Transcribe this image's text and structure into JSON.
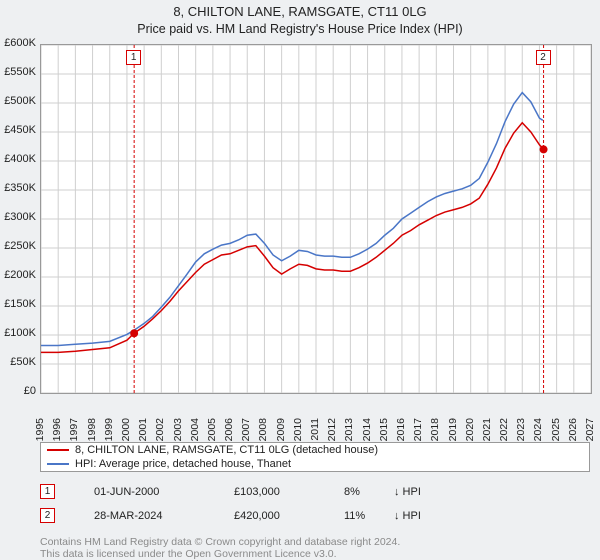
{
  "title_line1": "8, CHILTON LANE, RAMSGATE, CT11 0LG",
  "title_line2": "Price paid vs. HM Land Registry's House Price Index (HPI)",
  "chart": {
    "type": "line",
    "background": "#ffffff",
    "panel_background": "#eef0f2",
    "grid_color": "#cfcfcf",
    "border_color": "#999999",
    "x": {
      "min": 1995,
      "max": 2027,
      "ticks": [
        1995,
        1996,
        1997,
        1998,
        1999,
        2000,
        2001,
        2002,
        2003,
        2004,
        2005,
        2006,
        2007,
        2008,
        2009,
        2010,
        2011,
        2012,
        2013,
        2014,
        2015,
        2016,
        2017,
        2018,
        2019,
        2020,
        2021,
        2022,
        2023,
        2024,
        2025,
        2026,
        2027
      ],
      "labels": [
        "1995",
        "1996",
        "1997",
        "1998",
        "1999",
        "2000",
        "2001",
        "2002",
        "2003",
        "2004",
        "2005",
        "2006",
        "2007",
        "2008",
        "2009",
        "2010",
        "2011",
        "2012",
        "2013",
        "2014",
        "2015",
        "2016",
        "2017",
        "2018",
        "2019",
        "2020",
        "2021",
        "2022",
        "2023",
        "2024",
        "2025",
        "2026",
        "2027"
      ],
      "label_fontsize": 10.5
    },
    "y": {
      "min": 0,
      "max": 600000,
      "tick_step": 50000,
      "labels": [
        "£0",
        "£50K",
        "£100K",
        "£150K",
        "£200K",
        "£250K",
        "£300K",
        "£350K",
        "£400K",
        "£450K",
        "£500K",
        "£550K",
        "£600K"
      ],
      "label_fontsize": 11
    },
    "series": [
      {
        "name": "HPI: Average price, detached house, Thanet",
        "color": "#4a76c7",
        "width": 1.5,
        "points": [
          [
            1995,
            82000
          ],
          [
            1996,
            82000
          ],
          [
            1997,
            84000
          ],
          [
            1998,
            86000
          ],
          [
            1999,
            89000
          ],
          [
            2000,
            101000
          ],
          [
            2000.5,
            110000
          ],
          [
            2001,
            120000
          ],
          [
            2001.5,
            132000
          ],
          [
            2002,
            148000
          ],
          [
            2002.5,
            165000
          ],
          [
            2003,
            185000
          ],
          [
            2003.5,
            205000
          ],
          [
            2004,
            226000
          ],
          [
            2004.5,
            240000
          ],
          [
            2005,
            248000
          ],
          [
            2005.5,
            255000
          ],
          [
            2006,
            258000
          ],
          [
            2006.5,
            264000
          ],
          [
            2007,
            272000
          ],
          [
            2007.5,
            274000
          ],
          [
            2008,
            258000
          ],
          [
            2008.5,
            238000
          ],
          [
            2009,
            228000
          ],
          [
            2009.5,
            236000
          ],
          [
            2010,
            246000
          ],
          [
            2010.5,
            244000
          ],
          [
            2011,
            238000
          ],
          [
            2011.5,
            236000
          ],
          [
            2012,
            236000
          ],
          [
            2012.5,
            234000
          ],
          [
            2013,
            234000
          ],
          [
            2013.5,
            240000
          ],
          [
            2014,
            248000
          ],
          [
            2014.5,
            258000
          ],
          [
            2015,
            272000
          ],
          [
            2015.5,
            284000
          ],
          [
            2016,
            300000
          ],
          [
            2016.5,
            310000
          ],
          [
            2017,
            320000
          ],
          [
            2017.5,
            330000
          ],
          [
            2018,
            338000
          ],
          [
            2018.5,
            344000
          ],
          [
            2019,
            348000
          ],
          [
            2019.5,
            352000
          ],
          [
            2020,
            358000
          ],
          [
            2020.5,
            370000
          ],
          [
            2021,
            398000
          ],
          [
            2021.5,
            430000
          ],
          [
            2022,
            468000
          ],
          [
            2022.5,
            498000
          ],
          [
            2023,
            518000
          ],
          [
            2023.5,
            502000
          ],
          [
            2024,
            474000
          ],
          [
            2024.2,
            470000
          ]
        ]
      },
      {
        "name": "8, CHILTON LANE, RAMSGATE, CT11 0LG (detached house)",
        "color": "#d50000",
        "width": 1.5,
        "points": [
          [
            1995,
            70000
          ],
          [
            1996,
            70000
          ],
          [
            1997,
            72000
          ],
          [
            1998,
            75000
          ],
          [
            1999,
            78000
          ],
          [
            2000,
            91000
          ],
          [
            2000.42,
            103000
          ],
          [
            2001,
            115000
          ],
          [
            2001.5,
            128000
          ],
          [
            2002,
            142000
          ],
          [
            2002.5,
            158000
          ],
          [
            2003,
            176000
          ],
          [
            2003.5,
            192000
          ],
          [
            2004,
            208000
          ],
          [
            2004.5,
            222000
          ],
          [
            2005,
            230000
          ],
          [
            2005.5,
            238000
          ],
          [
            2006,
            240000
          ],
          [
            2006.5,
            246000
          ],
          [
            2007,
            252000
          ],
          [
            2007.5,
            254000
          ],
          [
            2008,
            236000
          ],
          [
            2008.5,
            216000
          ],
          [
            2009,
            205000
          ],
          [
            2009.5,
            214000
          ],
          [
            2010,
            222000
          ],
          [
            2010.5,
            220000
          ],
          [
            2011,
            214000
          ],
          [
            2011.5,
            212000
          ],
          [
            2012,
            212000
          ],
          [
            2012.5,
            210000
          ],
          [
            2013,
            210000
          ],
          [
            2013.5,
            216000
          ],
          [
            2014,
            224000
          ],
          [
            2014.5,
            234000
          ],
          [
            2015,
            246000
          ],
          [
            2015.5,
            258000
          ],
          [
            2016,
            272000
          ],
          [
            2016.5,
            280000
          ],
          [
            2017,
            290000
          ],
          [
            2017.5,
            298000
          ],
          [
            2018,
            306000
          ],
          [
            2018.5,
            312000
          ],
          [
            2019,
            316000
          ],
          [
            2019.5,
            320000
          ],
          [
            2020,
            326000
          ],
          [
            2020.5,
            336000
          ],
          [
            2021,
            360000
          ],
          [
            2021.5,
            388000
          ],
          [
            2022,
            422000
          ],
          [
            2022.5,
            448000
          ],
          [
            2023,
            466000
          ],
          [
            2023.5,
            450000
          ],
          [
            2024,
            428000
          ],
          [
            2024.24,
            420000
          ]
        ]
      }
    ],
    "sale_markers": [
      {
        "n": "1",
        "x": 2000.42,
        "y": 103000,
        "color": "#d50000"
      },
      {
        "n": "2",
        "x": 2024.24,
        "y": 420000,
        "color": "#d50000"
      }
    ],
    "marker_dot_color": "#d50000",
    "marker_dot_radius": 4
  },
  "legend": [
    {
      "color": "#d50000",
      "label": "8, CHILTON LANE, RAMSGATE, CT11 0LG (detached house)"
    },
    {
      "color": "#4a76c7",
      "label": "HPI: Average price, detached house, Thanet"
    }
  ],
  "sales_table": {
    "rows": [
      {
        "marker": "1",
        "marker_color": "#d50000",
        "date": "01-JUN-2000",
        "price": "£103,000",
        "pct": "8%",
        "arrow": "↓",
        "note": "HPI"
      },
      {
        "marker": "2",
        "marker_color": "#d50000",
        "date": "28-MAR-2024",
        "price": "£420,000",
        "pct": "11%",
        "arrow": "↓",
        "note": "HPI"
      }
    ]
  },
  "credits_line1": "Contains HM Land Registry data © Crown copyright and database right 2024.",
  "credits_line2": "This data is licensed under the Open Government Licence v3.0."
}
